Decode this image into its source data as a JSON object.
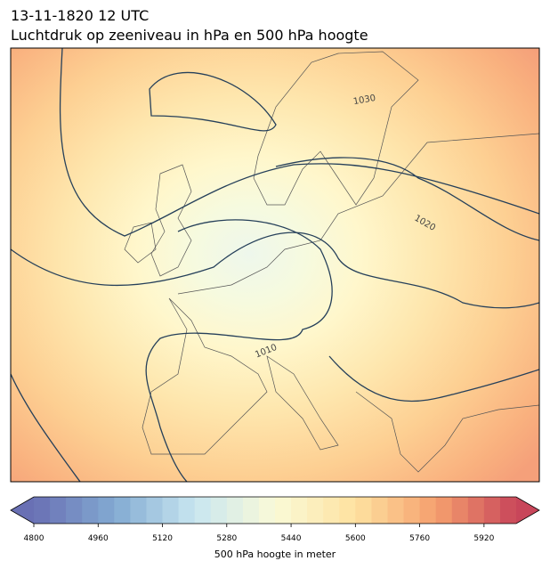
{
  "header": {
    "title": "13-11-1820 12 UTC",
    "subtitle": "Luchtdruk op zeeniveau in hPa en 500 hPa hoogte"
  },
  "map": {
    "contour_labels": [
      "1030",
      "1020",
      "1010"
    ]
  },
  "colorbar": {
    "lim": [
      4800,
      6000
    ],
    "ticks": [
      4800,
      4960,
      5120,
      5280,
      5440,
      5600,
      5760,
      5920
    ],
    "label": "500 hPa hoogte in meter"
  }
}
